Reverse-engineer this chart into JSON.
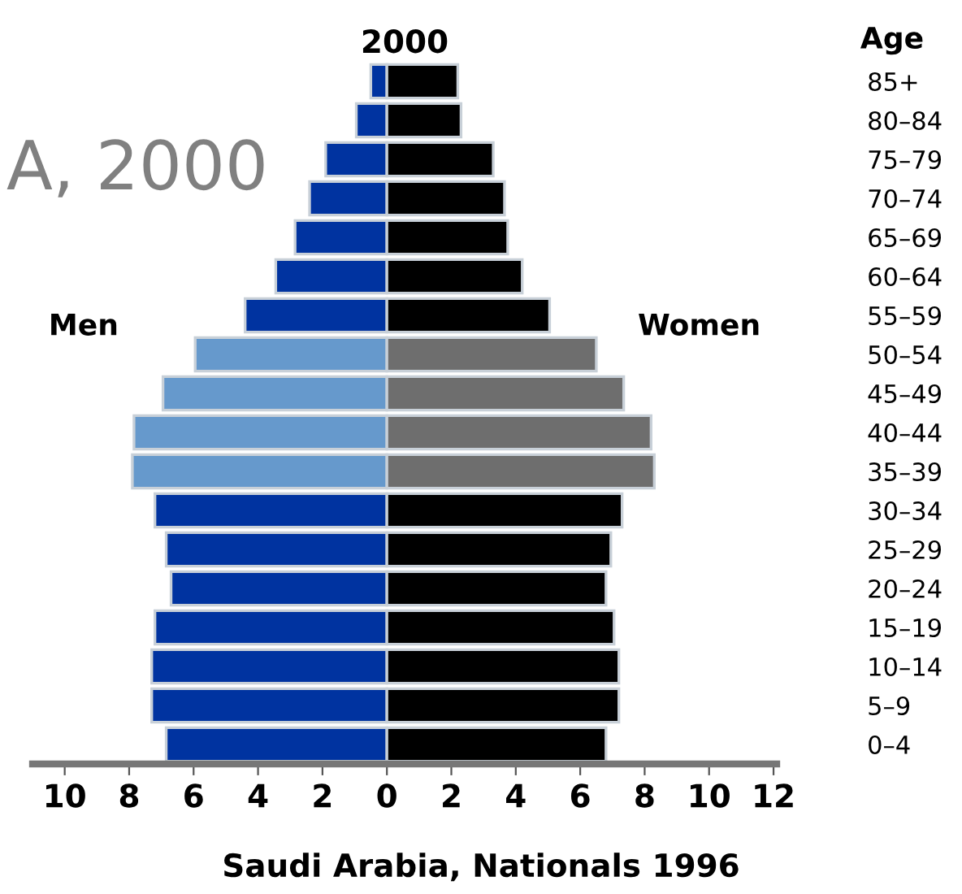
{
  "chart_data": {
    "type": "bar",
    "stacked": true,
    "orientation": "horizontal",
    "title": "2000",
    "ylabel": "Age",
    "categories": [
      "85+",
      "80–84",
      "75–79",
      "70–74",
      "65–69",
      "60–64",
      "55–59",
      "50–54",
      "45–49",
      "40–44",
      "35–39",
      "30–34",
      "25–29",
      "20–24",
      "15–19",
      "10–14",
      "5–9",
      "0–4"
    ],
    "series": [
      {
        "name": "Men",
        "colors": [
          "#0033a0",
          "#0033a0",
          "#0033a0",
          "#0033a0",
          "#0033a0",
          "#0033a0",
          "#0033a0",
          "#6699cc",
          "#6699cc",
          "#6699cc",
          "#6699cc",
          "#0033a0",
          "#0033a0",
          "#0033a0",
          "#0033a0",
          "#0033a0",
          "#0033a0",
          "#0033a0"
        ],
        "values": [
          -0.5,
          -0.95,
          -1.9,
          -2.4,
          -2.85,
          -3.45,
          -4.4,
          -5.95,
          -6.95,
          -7.85,
          -7.9,
          -7.2,
          -6.85,
          -6.7,
          -7.2,
          -7.3,
          -7.3,
          -6.85
        ]
      },
      {
        "name": "Women",
        "colors": [
          "#000000",
          "#000000",
          "#000000",
          "#000000",
          "#000000",
          "#000000",
          "#000000",
          "#6e6e6e",
          "#6e6e6e",
          "#6e6e6e",
          "#6e6e6e",
          "#000000",
          "#000000",
          "#000000",
          "#000000",
          "#000000",
          "#000000",
          "#000000"
        ],
        "values": [
          2.2,
          2.3,
          3.3,
          3.65,
          3.75,
          4.2,
          5.05,
          6.5,
          7.35,
          8.2,
          8.3,
          7.3,
          6.95,
          6.8,
          7.05,
          7.2,
          7.2,
          6.8
        ]
      }
    ],
    "xlim": [
      -11,
      12.1
    ],
    "xticks": [
      {
        "value": -10,
        "label": "10"
      },
      {
        "value": -8,
        "label": "8"
      },
      {
        "value": -6,
        "label": "6"
      },
      {
        "value": -4,
        "label": "4"
      },
      {
        "value": -2,
        "label": "2"
      },
      0,
      2,
      4,
      6,
      8,
      10,
      12
    ],
    "annotations": [
      "A, 2000",
      "Saudi Arabia, Nationals 1996"
    ]
  }
}
